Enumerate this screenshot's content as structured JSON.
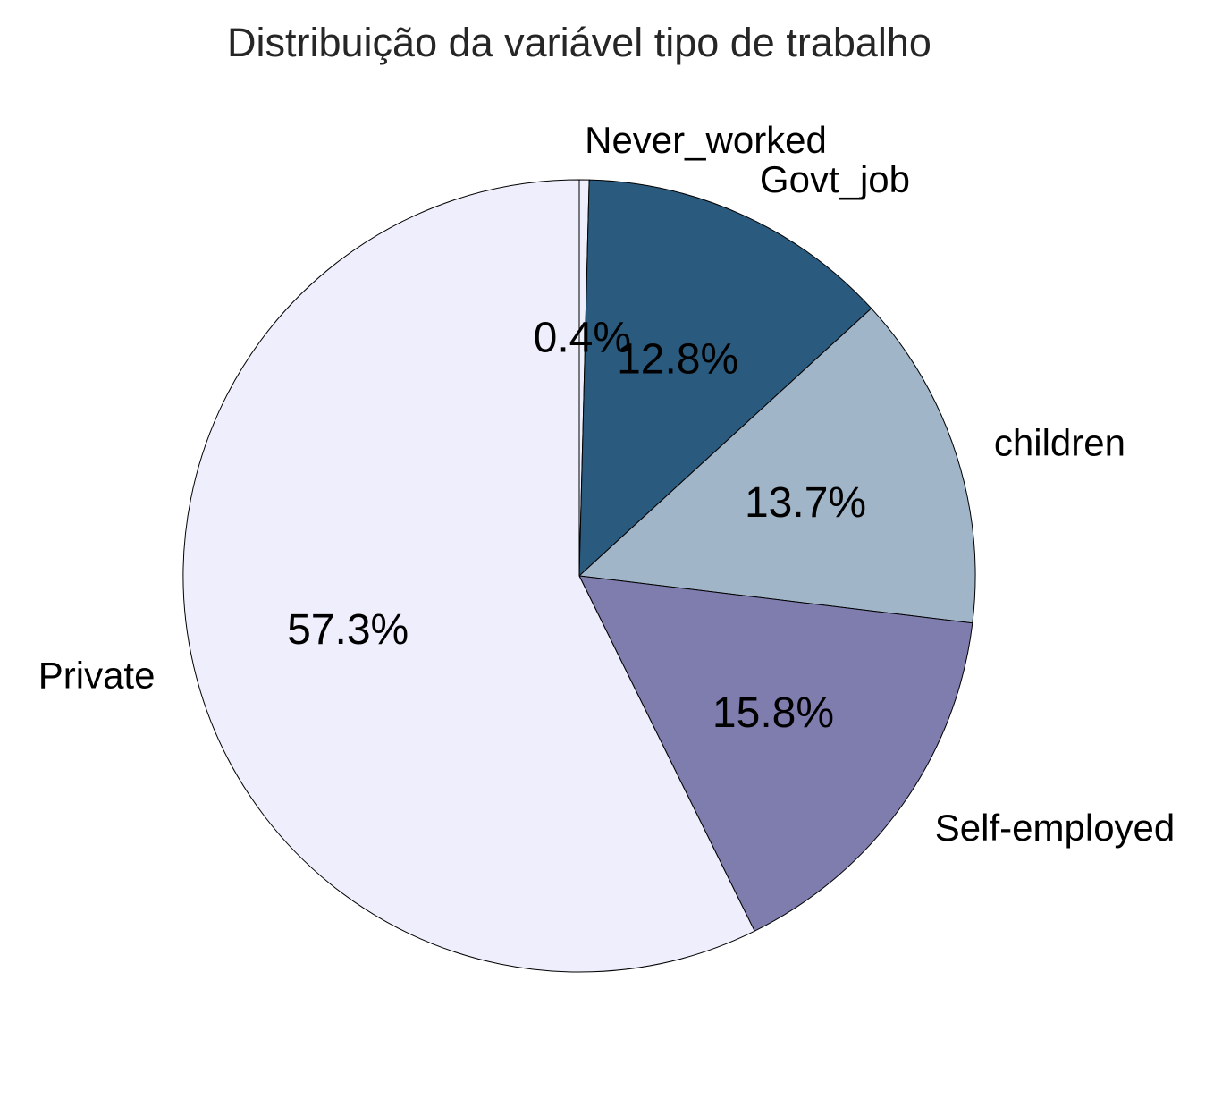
{
  "chart_data": {
    "type": "pie",
    "title": "Distribuição da variável tipo de trabalho",
    "categories": [
      "Never_worked",
      "Govt_job",
      "children",
      "Self-employed",
      "Private"
    ],
    "values": [
      0.4,
      12.8,
      13.7,
      15.8,
      57.3
    ],
    "value_labels": [
      "0.4%",
      "12.8%",
      "13.7%",
      "15.8%",
      "57.3%"
    ],
    "colors": [
      "#eeeefc",
      "#2a5a7d",
      "#a1b5c8",
      "#7f7cae",
      "#eeeefc"
    ],
    "start_angle_deg": 90,
    "direction": "clockwise"
  }
}
